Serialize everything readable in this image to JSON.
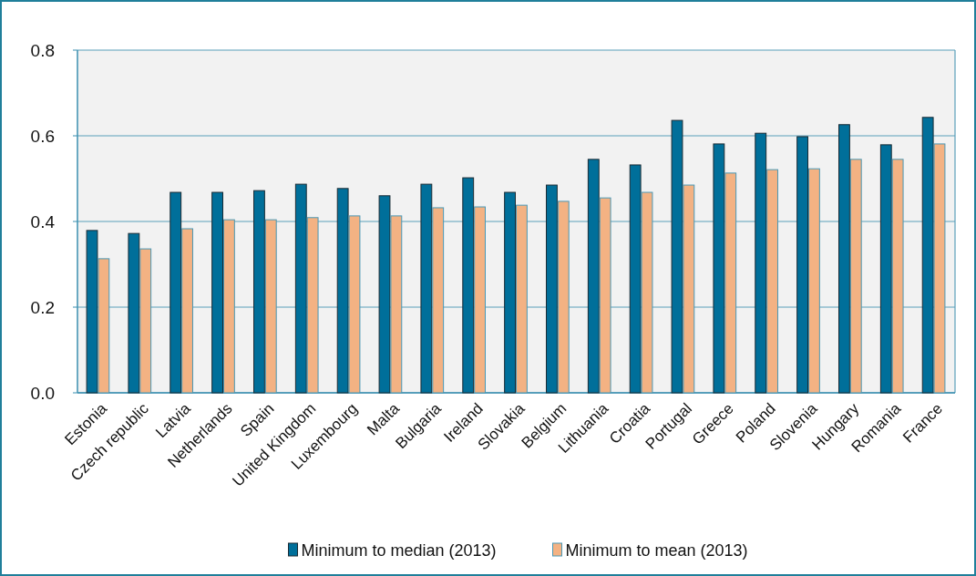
{
  "chart_data": {
    "type": "bar",
    "categories": [
      "Estonia",
      "Czech republic",
      "Latvia",
      "Netherlands",
      "Spain",
      "United Kingdom",
      "Luxembourg",
      "Malta",
      "Bulgaria",
      "Ireland",
      "Slovakia",
      "Belgium",
      "Lithuania",
      "Croatia",
      "Portugal",
      "Greece",
      "Poland",
      "Slovenia",
      "Hungary",
      "Romania",
      "France"
    ],
    "series": [
      {
        "name": "Minimum to median (2013)",
        "color": "#006f9a",
        "values": [
          0.379,
          0.372,
          0.468,
          0.468,
          0.472,
          0.487,
          0.477,
          0.46,
          0.487,
          0.502,
          0.468,
          0.485,
          0.545,
          0.532,
          0.636,
          0.581,
          0.606,
          0.598,
          0.626,
          0.579,
          0.643
        ]
      },
      {
        "name": "Minimum to mean (2013)",
        "color": "#f3b283",
        "values": [
          0.313,
          0.336,
          0.383,
          0.404,
          0.404,
          0.409,
          0.413,
          0.413,
          0.432,
          0.434,
          0.438,
          0.447,
          0.455,
          0.468,
          0.485,
          0.513,
          0.521,
          0.523,
          0.545,
          0.545,
          0.581
        ]
      }
    ],
    "ylim": [
      0,
      0.8
    ],
    "yticks": [
      {
        "value": 0,
        "label": "0.0"
      },
      {
        "value": 0.2,
        "label": "0.2"
      },
      {
        "value": 0.4,
        "label": "0.4"
      },
      {
        "value": 0.6,
        "label": "0.6"
      },
      {
        "value": 0.8,
        "label": "0.8"
      }
    ],
    "grid": "y",
    "legend": "bottom"
  }
}
